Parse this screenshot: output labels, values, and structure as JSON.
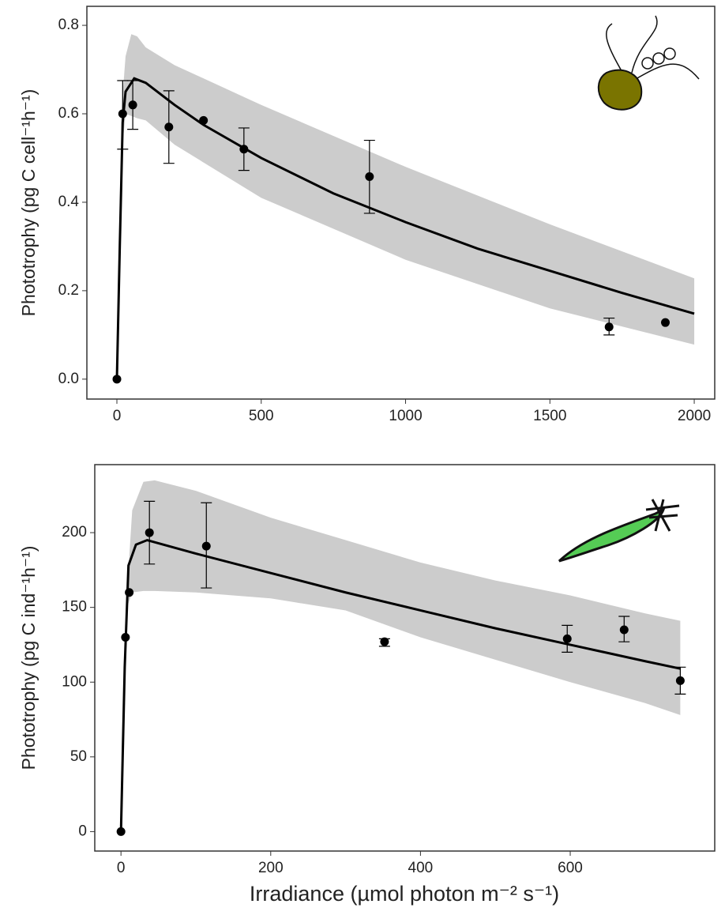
{
  "chart_data": [
    {
      "type": "fit-band-scatter",
      "ylabel": "Phototrophy (pg C cell⁻¹h⁻¹)",
      "xlim": [
        -104,
        2071
      ],
      "ylim": [
        -0.045,
        0.843
      ],
      "xticks": [
        0,
        500,
        1000,
        1500,
        2000
      ],
      "yticks": [
        {
          "value": 0,
          "label": "0.0"
        },
        0.2,
        0.4,
        0.6,
        0.8
      ],
      "band": {
        "color": "#cccccc",
        "x": [
          15,
          30,
          50,
          70,
          100,
          200,
          500,
          1000,
          1500,
          2000
        ],
        "upper": [
          0.6,
          0.73,
          0.78,
          0.775,
          0.75,
          0.71,
          0.62,
          0.48,
          0.35,
          0.228
        ],
        "lower": [
          0.5,
          0.6,
          0.595,
          0.59,
          0.585,
          0.53,
          0.41,
          0.27,
          0.16,
          0.078
        ]
      },
      "fit": {
        "color": "#000000",
        "x": [
          0,
          10,
          20,
          30,
          60,
          100,
          200,
          300,
          500,
          750,
          1000,
          1250,
          1500,
          1750,
          2000
        ],
        "values": [
          0,
          0.3,
          0.58,
          0.65,
          0.68,
          0.67,
          0.62,
          0.575,
          0.5,
          0.42,
          0.355,
          0.295,
          0.245,
          0.195,
          0.148
        ]
      },
      "points": {
        "color": "#000000",
        "x": [
          0,
          20,
          55,
          180,
          300,
          440,
          875,
          1705,
          1900
        ],
        "values": [
          0,
          0.6,
          0.62,
          0.57,
          0.585,
          0.52,
          0.458,
          0.118,
          0.128
        ],
        "err_high": [
          null,
          0.675,
          0.675,
          0.652,
          null,
          0.568,
          0.54,
          0.138,
          null
        ],
        "err_low": [
          null,
          0.52,
          0.565,
          0.488,
          null,
          0.472,
          0.375,
          0.1,
          null
        ]
      }
    },
    {
      "type": "fit-band-scatter",
      "ylabel": "Phototrophy (pg C ind⁻¹h⁻¹)",
      "xlim": [
        -35,
        793
      ],
      "ylim": [
        -13,
        245.5
      ],
      "xticks": [
        0,
        200,
        400,
        600
      ],
      "yticks": [
        0,
        50,
        100,
        150,
        200
      ],
      "band": {
        "color": "#cccccc",
        "x": [
          8,
          15,
          30,
          45,
          100,
          200,
          300,
          400,
          500,
          600,
          700,
          747
        ],
        "upper": [
          160,
          215,
          234,
          235,
          228,
          210,
          195,
          180,
          168,
          158,
          146,
          141
        ],
        "lower": [
          150,
          160,
          161,
          161,
          160,
          156,
          148,
          130,
          115,
          100,
          86,
          78
        ]
      },
      "fit": {
        "color": "#000000",
        "x": [
          0,
          5,
          10,
          20,
          35,
          100,
          200,
          300,
          400,
          500,
          600,
          700,
          747
        ],
        "values": [
          0,
          110,
          178,
          192,
          195,
          186,
          173,
          160,
          148,
          136,
          125,
          114,
          109
        ]
      },
      "points": {
        "color": "#000000",
        "x": [
          0,
          6,
          11,
          38,
          114,
          352,
          596,
          672,
          747
        ],
        "values": [
          0,
          130,
          160,
          200,
          191,
          127,
          129,
          135,
          101
        ],
        "err_high": [
          null,
          null,
          null,
          221,
          220,
          129,
          138,
          144,
          110
        ],
        "err_low": [
          null,
          null,
          null,
          179,
          163,
          124,
          120,
          127,
          92
        ]
      }
    }
  ],
  "xlabel": "Irradiance (µmol photon m⁻² s⁻¹)"
}
